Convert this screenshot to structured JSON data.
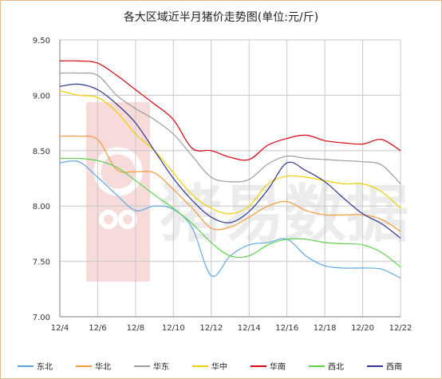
{
  "chart_data": {
    "type": "line",
    "title": "各大区域近半月猪价走势图(单位:元/斤)",
    "xlabel": "",
    "ylabel": "",
    "categories": [
      "12/4",
      "12/6",
      "12/8",
      "12/10",
      "12/12",
      "12/14",
      "12/16",
      "12/18",
      "12/20",
      "12/22"
    ],
    "y_ticks": [
      "9.50",
      "9.00",
      "8.50",
      "8.00",
      "7.50",
      "7.00"
    ],
    "ylim": [
      7.0,
      9.5
    ],
    "grid": true,
    "legend_position": "bottom",
    "watermark_text": "猪易数据",
    "series": [
      {
        "name": "东北",
        "color": "#5fa8e6",
        "x": [
          "12/4",
          "12/5",
          "12/6",
          "12/7",
          "12/8",
          "12/9",
          "12/10",
          "12/11",
          "12/12",
          "12/13",
          "12/14",
          "12/15",
          "12/16",
          "12/17",
          "12/18",
          "12/19",
          "12/20",
          "12/21",
          "12/22"
        ],
        "values": [
          8.39,
          8.4,
          8.26,
          8.1,
          7.96,
          8.0,
          7.97,
          7.8,
          7.37,
          7.55,
          7.65,
          7.67,
          7.7,
          7.55,
          7.46,
          7.44,
          7.44,
          7.43,
          7.35
        ]
      },
      {
        "name": "华北",
        "color": "#f59a3b",
        "x": [
          "12/4",
          "12/5",
          "12/6",
          "12/7",
          "12/8",
          "12/9",
          "12/10",
          "12/11",
          "12/12",
          "12/13",
          "12/14",
          "12/15",
          "12/16",
          "12/17",
          "12/18",
          "12/19",
          "12/20",
          "12/21",
          "12/22"
        ],
        "values": [
          8.63,
          8.63,
          8.6,
          8.33,
          8.31,
          8.3,
          8.15,
          7.98,
          7.8,
          7.81,
          7.9,
          8.0,
          8.04,
          7.96,
          7.92,
          7.92,
          7.92,
          7.88,
          7.77
        ]
      },
      {
        "name": "华东",
        "color": "#9c9c9c",
        "x": [
          "12/4",
          "12/5",
          "12/6",
          "12/7",
          "12/8",
          "12/9",
          "12/10",
          "12/11",
          "12/12",
          "12/13",
          "12/14",
          "12/15",
          "12/16",
          "12/17",
          "12/18",
          "12/19",
          "12/20",
          "12/21",
          "12/22"
        ],
        "values": [
          9.2,
          9.2,
          9.18,
          9.0,
          8.88,
          8.78,
          8.65,
          8.45,
          8.26,
          8.22,
          8.24,
          8.38,
          8.45,
          8.43,
          8.42,
          8.41,
          8.4,
          8.37,
          8.2
        ]
      },
      {
        "name": "华中",
        "color": "#f0d000",
        "x": [
          "12/4",
          "12/5",
          "12/6",
          "12/7",
          "12/8",
          "12/9",
          "12/10",
          "12/11",
          "12/12",
          "12/13",
          "12/14",
          "12/15",
          "12/16",
          "12/17",
          "12/18",
          "12/19",
          "12/20",
          "12/21",
          "12/22"
        ],
        "values": [
          9.04,
          9.0,
          8.98,
          8.85,
          8.65,
          8.5,
          8.3,
          8.1,
          7.98,
          7.93,
          8.0,
          8.2,
          8.27,
          8.26,
          8.23,
          8.2,
          8.2,
          8.13,
          7.98
        ]
      },
      {
        "name": "华南",
        "color": "#d9000d",
        "x": [
          "12/4",
          "12/5",
          "12/6",
          "12/7",
          "12/8",
          "12/9",
          "12/10",
          "12/11",
          "12/12",
          "12/13",
          "12/14",
          "12/15",
          "12/16",
          "12/17",
          "12/18",
          "12/19",
          "12/20",
          "12/21",
          "12/22"
        ],
        "values": [
          9.31,
          9.31,
          9.29,
          9.18,
          9.05,
          8.92,
          8.78,
          8.52,
          8.5,
          8.44,
          8.42,
          8.55,
          8.61,
          8.64,
          8.59,
          8.57,
          8.56,
          8.6,
          8.5
        ]
      },
      {
        "name": "西北",
        "color": "#5ed04a",
        "x": [
          "12/4",
          "12/5",
          "12/6",
          "12/7",
          "12/8",
          "12/9",
          "12/10",
          "12/11",
          "12/12",
          "12/13",
          "12/14",
          "12/15",
          "12/16",
          "12/17",
          "12/18",
          "12/19",
          "12/20",
          "12/21",
          "12/22"
        ],
        "values": [
          8.43,
          8.43,
          8.41,
          8.35,
          8.23,
          8.1,
          7.98,
          7.84,
          7.67,
          7.55,
          7.55,
          7.65,
          7.7,
          7.7,
          7.67,
          7.66,
          7.65,
          7.58,
          7.45
        ]
      },
      {
        "name": "西南",
        "color": "#2f3590",
        "x": [
          "12/4",
          "12/5",
          "12/6",
          "12/7",
          "12/8",
          "12/9",
          "12/10",
          "12/11",
          "12/12",
          "12/13",
          "12/14",
          "12/15",
          "12/16",
          "12/17",
          "12/18",
          "12/19",
          "12/20",
          "12/21",
          "12/22"
        ],
        "values": [
          9.08,
          9.1,
          9.05,
          8.92,
          8.75,
          8.5,
          8.25,
          8.05,
          7.9,
          7.85,
          7.95,
          8.15,
          8.39,
          8.32,
          8.22,
          8.07,
          7.93,
          7.84,
          7.71
        ]
      }
    ]
  }
}
